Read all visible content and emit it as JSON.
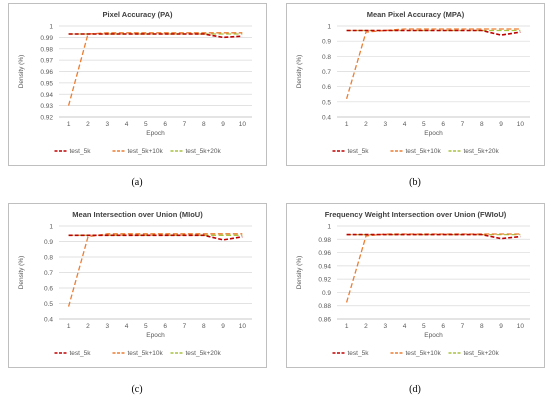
{
  "chart_data": [
    {
      "type": "line",
      "title": "Pixel Accuracy (PA)",
      "xlabel": "Epoch",
      "ylabel": "Density (%)",
      "caption": "(a)",
      "x": [
        1,
        2,
        3,
        4,
        5,
        6,
        7,
        8,
        9,
        10
      ],
      "ylim": [
        0.92,
        1.0
      ],
      "yticks": [
        "1",
        "0.99",
        "0.98",
        "0.97",
        "0.96",
        "0.95",
        "0.94",
        "0.93",
        "0.92"
      ],
      "ytick_values": [
        1.0,
        0.99,
        0.98,
        0.97,
        0.96,
        0.95,
        0.94,
        0.93,
        0.92
      ],
      "grid": true,
      "legend": "bottom",
      "series": [
        {
          "name": "test_5k",
          "color": "#c00000",
          "values": [
            0.993,
            0.993,
            0.993,
            0.993,
            0.993,
            0.993,
            0.993,
            0.993,
            0.99,
            0.991
          ]
        },
        {
          "name": "test_5k+10k",
          "color": "#ed7d31",
          "values": [
            0.93,
            0.993,
            0.994,
            0.994,
            0.994,
            0.994,
            0.994,
            0.994,
            0.994,
            0.994
          ]
        },
        {
          "name": "test_5k+20k",
          "color": "#a9c23f",
          "values": [
            0.993,
            0.993,
            0.993,
            0.993,
            0.993,
            0.993,
            0.993,
            0.993,
            0.993,
            0.993
          ]
        }
      ]
    },
    {
      "type": "line",
      "title": "Mean Pixel Accuracy (MPA)",
      "xlabel": "Epoch",
      "ylabel": "Density (%)",
      "caption": "(b)",
      "x": [
        1,
        2,
        3,
        4,
        5,
        6,
        7,
        8,
        9,
        10
      ],
      "ylim": [
        0.4,
        1.0
      ],
      "yticks": [
        "1",
        "0.9",
        "0.8",
        "0.7",
        "0.6",
        "0.5",
        "0.4"
      ],
      "ytick_values": [
        1.0,
        0.9,
        0.8,
        0.7,
        0.6,
        0.5,
        0.4
      ],
      "grid": true,
      "legend": "bottom",
      "series": [
        {
          "name": "test_5k",
          "color": "#c00000",
          "values": [
            0.97,
            0.97,
            0.97,
            0.97,
            0.97,
            0.97,
            0.97,
            0.97,
            0.94,
            0.96
          ]
        },
        {
          "name": "test_5k+10k",
          "color": "#ed7d31",
          "values": [
            0.52,
            0.96,
            0.97,
            0.98,
            0.98,
            0.98,
            0.98,
            0.98,
            0.98,
            0.98
          ]
        },
        {
          "name": "test_5k+20k",
          "color": "#a9c23f",
          "values": [
            0.97,
            0.97,
            0.97,
            0.97,
            0.97,
            0.97,
            0.97,
            0.97,
            0.97,
            0.97
          ]
        }
      ]
    },
    {
      "type": "line",
      "title": "Mean Intersection over Union (MIoU)",
      "xlabel": "Epoch",
      "ylabel": "Density (%)",
      "caption": "(c)",
      "x": [
        1,
        2,
        3,
        4,
        5,
        6,
        7,
        8,
        9,
        10
      ],
      "ylim": [
        0.4,
        1.0
      ],
      "yticks": [
        "1",
        "0.9",
        "0.8",
        "0.7",
        "0.6",
        "0.5",
        "0.4"
      ],
      "ytick_values": [
        1.0,
        0.9,
        0.8,
        0.7,
        0.6,
        0.5,
        0.4
      ],
      "grid": true,
      "legend": "bottom",
      "series": [
        {
          "name": "test_5k",
          "color": "#c00000",
          "values": [
            0.94,
            0.94,
            0.94,
            0.94,
            0.94,
            0.94,
            0.94,
            0.94,
            0.91,
            0.93
          ]
        },
        {
          "name": "test_5k+10k",
          "color": "#ed7d31",
          "values": [
            0.48,
            0.93,
            0.95,
            0.95,
            0.95,
            0.95,
            0.95,
            0.95,
            0.95,
            0.95
          ]
        },
        {
          "name": "test_5k+20k",
          "color": "#a9c23f",
          "values": [
            0.94,
            0.94,
            0.94,
            0.94,
            0.94,
            0.94,
            0.94,
            0.94,
            0.94,
            0.94
          ]
        }
      ]
    },
    {
      "type": "line",
      "title": "Frequency Weight Intersection over Union (FWIoU)",
      "xlabel": "Epoch",
      "ylabel": "Density (%)",
      "caption": "(d)",
      "x": [
        1,
        2,
        3,
        4,
        5,
        6,
        7,
        8,
        9,
        10
      ],
      "ylim": [
        0.86,
        1.0
      ],
      "yticks": [
        "1",
        "0.98",
        "0.96",
        "0.94",
        "0.92",
        "0.9",
        "0.88",
        "0.86"
      ],
      "ytick_values": [
        1.0,
        0.98,
        0.96,
        0.94,
        0.92,
        0.9,
        0.88,
        0.86
      ],
      "grid": true,
      "legend": "bottom",
      "series": [
        {
          "name": "test_5k",
          "color": "#c00000",
          "values": [
            0.987,
            0.987,
            0.987,
            0.987,
            0.987,
            0.987,
            0.987,
            0.987,
            0.981,
            0.984
          ]
        },
        {
          "name": "test_5k+10k",
          "color": "#ed7d31",
          "values": [
            0.885,
            0.985,
            0.988,
            0.988,
            0.988,
            0.988,
            0.988,
            0.988,
            0.988,
            0.988
          ]
        },
        {
          "name": "test_5k+20k",
          "color": "#a9c23f",
          "values": [
            0.987,
            0.987,
            0.987,
            0.987,
            0.987,
            0.987,
            0.987,
            0.987,
            0.987,
            0.987
          ]
        }
      ]
    }
  ]
}
